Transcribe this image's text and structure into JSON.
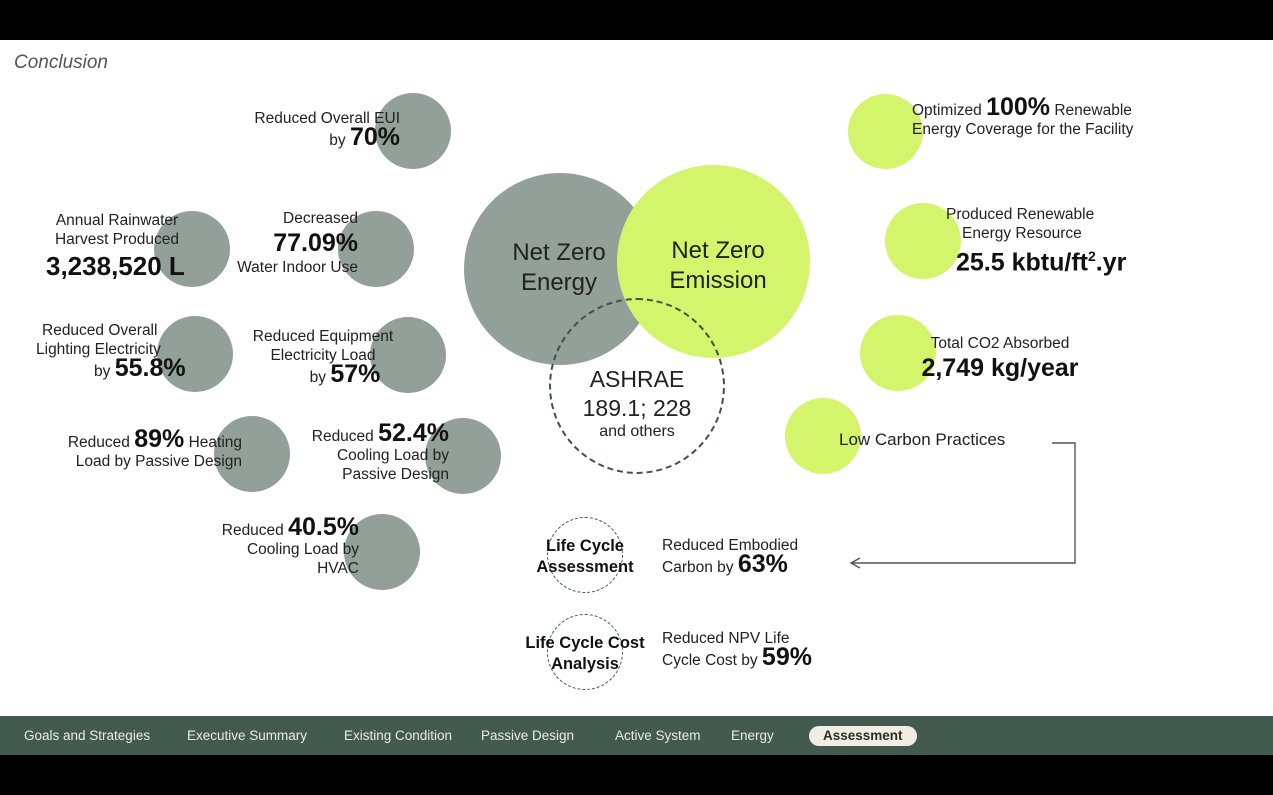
{
  "page": {
    "title": "Conclusion"
  },
  "center": {
    "net_zero_energy": [
      "Net Zero",
      "Energy"
    ],
    "net_zero_emission": [
      "Net Zero",
      "Emission"
    ],
    "ashrae": {
      "line1": "ASHRAE",
      "line2": "189.1; 228",
      "line3": "and others"
    }
  },
  "left_items": {
    "eui": {
      "line1": "Reduced Overall EUI",
      "prefix": "by ",
      "value": "70%"
    },
    "rainwater": {
      "line1": "Annual Rainwater",
      "line2": "Harvest Produced",
      "value": "3,238,520 L"
    },
    "water": {
      "line1": "Decreased",
      "value": "77.09%",
      "line2": "Water Indoor Use"
    },
    "lighting": {
      "line1": "Reduced Overall",
      "line2": "Lighting Electricity",
      "prefix": "by ",
      "value": "55.8%"
    },
    "equipment": {
      "line1": "Reduced Equipment",
      "line2": "Electricity Load",
      "prefix": "by ",
      "value": "57%"
    },
    "heating": {
      "prefix": "Reduced ",
      "value": "89%",
      "suffix": " Heating",
      "line2": "Load by Passive Design"
    },
    "cooling_passive": {
      "prefix": "Reduced ",
      "value": "52.4%",
      "line2": "Cooling Load by",
      "line3": "Passive Design"
    },
    "cooling_hvac": {
      "prefix": "Reduced ",
      "value": "40.5%",
      "line2": "Cooling Load by",
      "line3": "HVAC"
    }
  },
  "right_items": {
    "renewable_coverage": {
      "prefix": "Optimized ",
      "value": "100%",
      "suffix": " Renewable",
      "line2": "Energy Coverage for the Facility"
    },
    "renewable_resource": {
      "line1": "Produced Renewable",
      "line2": "Energy Resource",
      "value": "25.5 kbtu/ft",
      "sup": "2",
      "unit_suffix": ".yr"
    },
    "co2": {
      "line1": "Total CO2 Absorbed",
      "value": "2,749 kg/year"
    },
    "low_carbon": {
      "label": "Low Carbon Practices"
    }
  },
  "bottom_items": {
    "lca": {
      "line1": "Life Cycle",
      "line2": "Assessment",
      "desc1": "Reduced Embodied",
      "desc2": "Carbon by ",
      "value": "63%"
    },
    "lcca": {
      "line1": "Life Cycle Cost",
      "line2": "Analysis",
      "desc1": "Reduced NPV Life",
      "desc2": "Cycle Cost by ",
      "value": "59%"
    }
  },
  "nav": {
    "items": [
      "Goals and Strategies",
      "Executive Summary",
      "Existing Condition",
      "Passive Design",
      "Active System",
      "Energy",
      "Assessment"
    ],
    "active": "Assessment"
  },
  "colors": {
    "gray_circle": "#939f99",
    "lime_circle": "#d4f46c",
    "nav_bg": "#435a51",
    "dashed": "#3f524b"
  }
}
